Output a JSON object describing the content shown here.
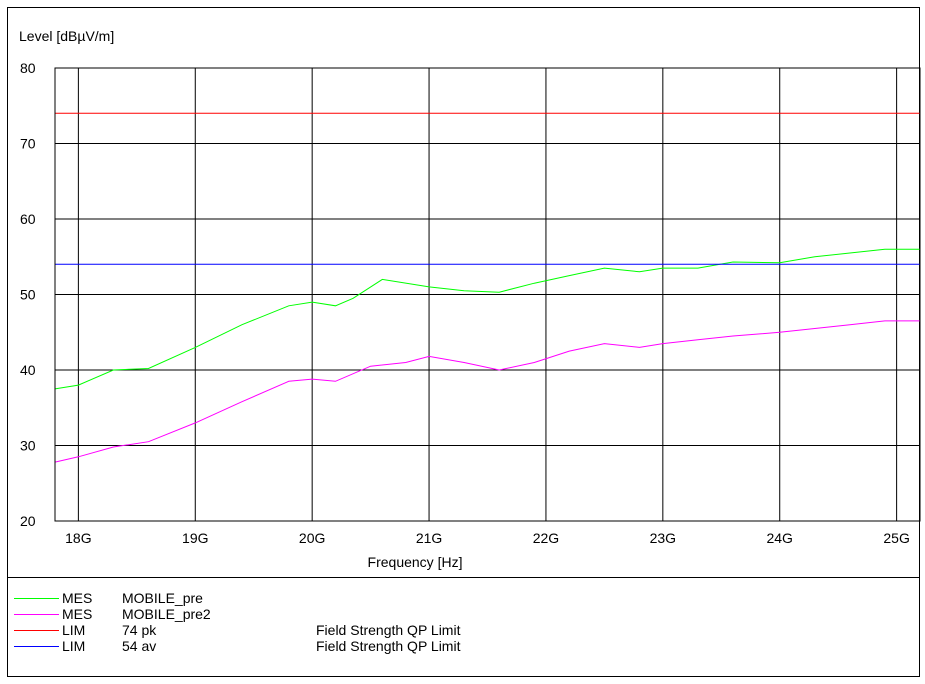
{
  "chart_data": {
    "type": "line",
    "ylabel": "Level [dBµV/m]",
    "xlabel": "Frequency [Hz]",
    "x_ticks": [
      "18G",
      "19G",
      "20G",
      "21G",
      "22G",
      "23G",
      "24G",
      "25G"
    ],
    "xlim_ghz": [
      17.8,
      25.2
    ],
    "ylim": [
      20,
      80
    ],
    "y_ticks": [
      20,
      30,
      40,
      50,
      60,
      70,
      80
    ],
    "grid": true,
    "series": [
      {
        "name": "MOBILE_pre",
        "kind": "MES",
        "color": "#00ff00",
        "x_ghz": [
          17.8,
          18.0,
          18.3,
          18.6,
          19.0,
          19.4,
          19.8,
          20.0,
          20.2,
          20.35,
          20.6,
          21.0,
          21.3,
          21.6,
          21.9,
          22.2,
          22.5,
          22.8,
          23.0,
          23.3,
          23.6,
          24.0,
          24.3,
          24.6,
          24.9,
          25.2
        ],
        "y": [
          37.5,
          38.0,
          40.0,
          40.2,
          43.0,
          46.0,
          48.5,
          49.0,
          48.5,
          49.5,
          52.0,
          51.0,
          50.5,
          50.3,
          51.5,
          52.5,
          53.5,
          53.0,
          53.5,
          53.5,
          54.3,
          54.2,
          55.0,
          55.5,
          56.0,
          56.0
        ]
      },
      {
        "name": "MOBILE_pre2",
        "kind": "MES",
        "color": "#ff00ff",
        "x_ghz": [
          17.8,
          18.0,
          18.3,
          18.6,
          19.0,
          19.4,
          19.8,
          20.0,
          20.2,
          20.5,
          20.8,
          21.0,
          21.3,
          21.6,
          21.9,
          22.2,
          22.5,
          22.8,
          23.0,
          23.3,
          23.6,
          24.0,
          24.3,
          24.6,
          24.9,
          25.2
        ],
        "y": [
          27.8,
          28.5,
          29.8,
          30.5,
          33.0,
          35.8,
          38.5,
          38.8,
          38.5,
          40.5,
          41.0,
          41.8,
          41.0,
          40.0,
          41.0,
          42.5,
          43.5,
          43.0,
          43.5,
          44.0,
          44.5,
          45.0,
          45.5,
          46.0,
          46.5,
          46.5
        ]
      },
      {
        "name": "74 pk",
        "kind": "LIM",
        "color": "#ff0000",
        "x_ghz": [
          17.8,
          25.2
        ],
        "y": [
          74,
          74
        ]
      },
      {
        "name": "54 av",
        "kind": "LIM",
        "color": "#0000ff",
        "x_ghz": [
          17.8,
          25.2
        ],
        "y": [
          54,
          54
        ]
      }
    ]
  },
  "legend": [
    {
      "kind": "MES",
      "name": "MOBILE_pre",
      "desc": "",
      "color": "#00ff00"
    },
    {
      "kind": "MES",
      "name": "MOBILE_pre2",
      "desc": "",
      "color": "#ff00ff"
    },
    {
      "kind": "LIM",
      "name": "74 pk",
      "desc": "Field Strength QP Limit",
      "color": "#ff0000"
    },
    {
      "kind": "LIM",
      "name": "54 av",
      "desc": "Field Strength QP Limit",
      "color": "#0000ff"
    }
  ]
}
